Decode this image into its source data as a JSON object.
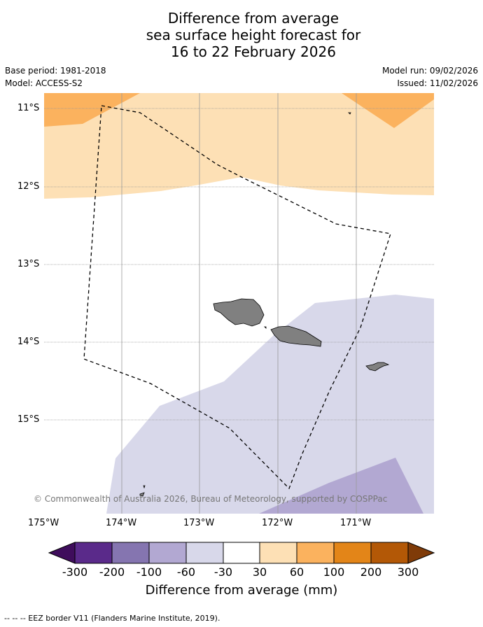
{
  "title": {
    "line1": "Difference from average",
    "line2": "sea surface height forecast for",
    "line3": "16 to 22 February 2026"
  },
  "meta": {
    "base_period": "Base period: 1981-2018",
    "model": "Model: ACCESS-S2",
    "model_run": "Model run: 09/02/2026",
    "issued": "Issued: 11/02/2026"
  },
  "map": {
    "lat_labels": [
      "11°S",
      "12°S",
      "13°S",
      "14°S",
      "15°S"
    ],
    "lon_labels": [
      "175°W",
      "174°W",
      "173°W",
      "172°W",
      "171°W"
    ],
    "copyright": "© Commonwealth of Australia 2026, Bureau of Meteorology, supported by COSPPac",
    "colors": {
      "land": "#808080",
      "gridline": "#999999",
      "eez": "#000000"
    }
  },
  "colorbar": {
    "title": "Difference from average (mm)",
    "tick_labels": [
      "-300",
      "-200",
      "-100",
      "-60",
      "-30",
      "30",
      "60",
      "100",
      "200",
      "300"
    ],
    "bins": [
      {
        "color": "#3f0d5c"
      },
      {
        "color": "#5a2a8a"
      },
      {
        "color": "#8575b0"
      },
      {
        "color": "#b2a8d2"
      },
      {
        "color": "#d8d8ea"
      },
      {
        "color": "#ffffff"
      },
      {
        "color": "#fde0b5"
      },
      {
        "color": "#fbb25e"
      },
      {
        "color": "#e38518"
      },
      {
        "color": "#b35806"
      },
      {
        "color": "#7f3b08"
      }
    ]
  },
  "footnote": "--  --  -- EEZ border V11 (Flanders Marine Institute, 2019)."
}
